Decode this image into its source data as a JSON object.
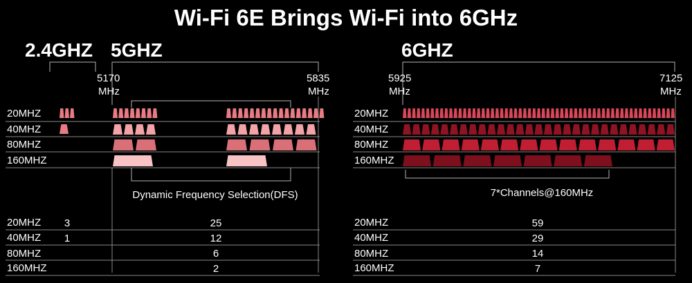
{
  "title": "Wi-Fi 6E Brings Wi-Fi into 6GHz",
  "bands": {
    "b24": "2.4GHZ",
    "b5": "5GHZ",
    "b6": "6GHZ"
  },
  "freqs": {
    "f5170": [
      "5170",
      "MHz"
    ],
    "f5835": [
      "5835",
      "MHz"
    ],
    "f5925": [
      "5925",
      "MHz"
    ],
    "f7125": [
      "7125",
      "MHz"
    ]
  },
  "rows": [
    "20MHZ",
    "40MHZ",
    "80MHZ",
    "160MHZ"
  ],
  "notes": {
    "dfs": "Dynamic Frequency Selection(DFS)",
    "ch160": "7*Channels@160MHz"
  },
  "counts": {
    "ghz24": [
      "3",
      "1",
      "",
      ""
    ],
    "ghz5": [
      "25",
      "12",
      "6",
      "2"
    ],
    "ghz6": [
      "59",
      "29",
      "14",
      "7"
    ]
  },
  "colors": {
    "band24": "#e87b84",
    "band5_20": "#e87b84",
    "band5_40": "#f2a3a8",
    "band5_80": "#d97078",
    "band5_160": "#f8c3c5",
    "band6_20": "#d9485a",
    "band6_40": "#8e1424",
    "band6_80": "#c01e32",
    "band6_160": "#7e0f1d"
  }
}
